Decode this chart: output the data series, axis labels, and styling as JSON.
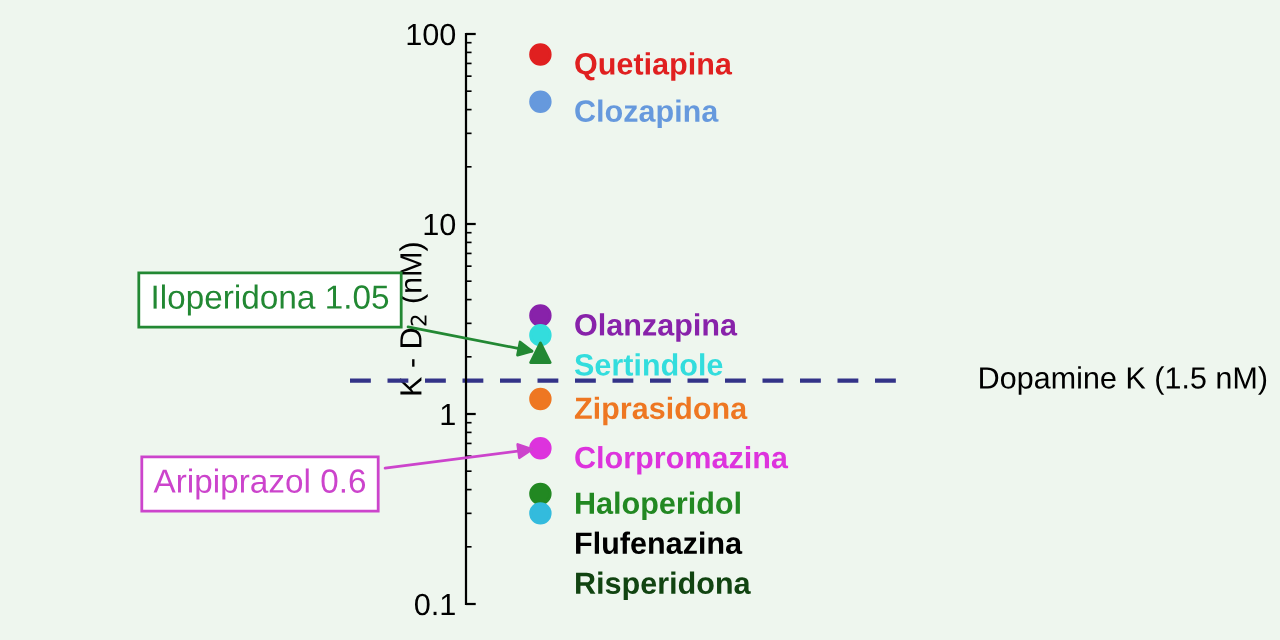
{
  "chart_data": {
    "type": "scatter",
    "ylabel": "K - D$_{2}$ (nM)",
    "log": true,
    "ylim": [
      0.1,
      100
    ],
    "yticks": [
      0.1,
      1,
      10,
      100
    ],
    "marker": "circle",
    "grid": false,
    "legend": false,
    "categories": [
      null
    ],
    "series": [
      {
        "name": "Quetiapina",
        "color": "#e02020",
        "values": [
          78
        ]
      },
      {
        "name": "Clozapina",
        "color": "#6699dd",
        "values": [
          44
        ]
      },
      {
        "name": "Olanzapina",
        "color": "#8822aa",
        "values": [
          3.3
        ]
      },
      {
        "name": "Sertindole",
        "color": "#33dddd",
        "values": [
          2.6
        ]
      },
      {
        "color": "#228833",
        "marker": "triangle",
        "values": [
          2.1
        ]
      },
      {
        "name": "Ziprasidona",
        "color": "#ee7722",
        "values": [
          1.2
        ]
      },
      {
        "name": "Clorpromazina",
        "color": "#dd33dd",
        "values": [
          0.66
        ]
      },
      {
        "name": "Haloperidol",
        "color": "#228822",
        "values": [
          0.38
        ]
      },
      {
        "color": "#33bbdd",
        "values": [
          0.3
        ]
      },
      {
        "name": "Flufenazina",
        "color": "#000000",
        "values": [
          null
        ]
      },
      {
        "name": "Risperidona",
        "color": "#114411",
        "values": [
          null
        ]
      }
    ],
    "ref_lines": [
      {
        "axis": "y",
        "value": 1.5,
        "label": "Dopamine K (1.5 nM)",
        "color": "#333388",
        "line_style": "dashed"
      }
    ],
    "annotations": [
      "Iloperidona 1.05",
      "Aripiprazol 0.6"
    ]
  }
}
